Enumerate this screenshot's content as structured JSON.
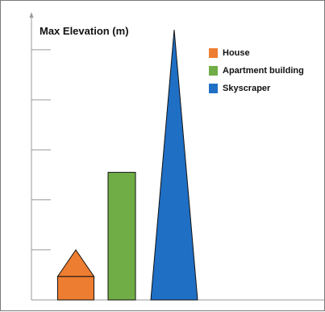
{
  "chart_data": {
    "type": "bar",
    "ylabel": "Max Elevation (m)",
    "xlabel": "",
    "title": "",
    "categories": [
      "House",
      "Apartment building",
      "Skyscraper"
    ],
    "values": [
      1.0,
      2.55,
      5.4
    ],
    "ylim": [
      0,
      5.4
    ],
    "yticks": [
      1,
      2,
      3,
      4,
      5
    ],
    "grid": false,
    "legend_position": "top-right",
    "series": [
      {
        "name": "House",
        "color": "#ED7D31",
        "shape": "house",
        "value": 1.0
      },
      {
        "name": "Apartment building",
        "color": "#70AD47",
        "shape": "rectangle",
        "value": 2.55
      },
      {
        "name": "Skyscraper",
        "color": "#1F6FC5",
        "shape": "triangle",
        "value": 5.4
      }
    ]
  }
}
